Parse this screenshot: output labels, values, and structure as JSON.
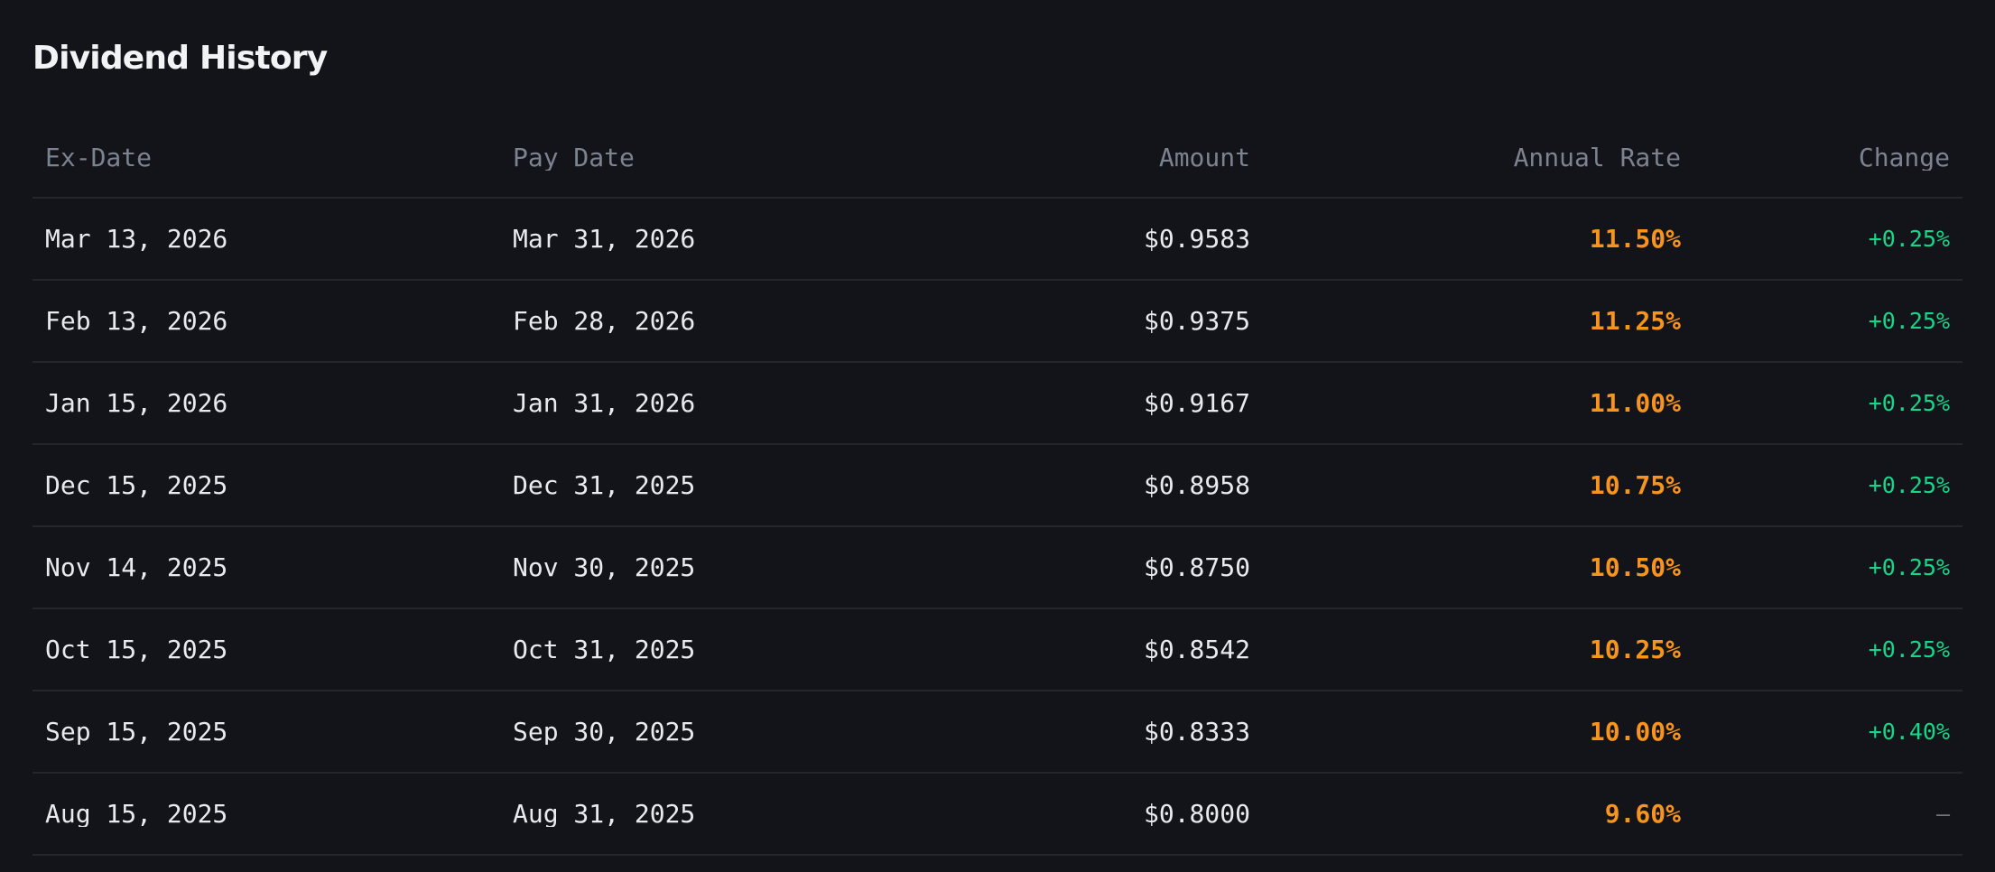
{
  "page": {
    "title": "Dividend History"
  },
  "colors": {
    "background": "#131419",
    "divider": "#25262c",
    "title_text": "#f2f3f5",
    "header_text": "#7c8290",
    "body_text": "#e9eaee",
    "annual_rate_orange": "#f7941d",
    "change_green": "#17d589",
    "no_change_gray": "#6f7480"
  },
  "table": {
    "columns": [
      {
        "key": "ex_date",
        "label": "Ex-Date",
        "align": "left"
      },
      {
        "key": "pay_date",
        "label": "Pay Date",
        "align": "left"
      },
      {
        "key": "amount",
        "label": "Amount",
        "align": "right"
      },
      {
        "key": "annual_rate",
        "label": "Annual Rate",
        "align": "right"
      },
      {
        "key": "change",
        "label": "Change",
        "align": "right"
      }
    ],
    "rows": [
      {
        "ex_date": "Mar 13, 2026",
        "pay_date": "Mar 31, 2026",
        "amount": "$0.9583",
        "annual_rate": "11.50%",
        "change": "+0.25%",
        "change_type": "positive"
      },
      {
        "ex_date": "Feb 13, 2026",
        "pay_date": "Feb 28, 2026",
        "amount": "$0.9375",
        "annual_rate": "11.25%",
        "change": "+0.25%",
        "change_type": "positive"
      },
      {
        "ex_date": "Jan 15, 2026",
        "pay_date": "Jan 31, 2026",
        "amount": "$0.9167",
        "annual_rate": "11.00%",
        "change": "+0.25%",
        "change_type": "positive"
      },
      {
        "ex_date": "Dec 15, 2025",
        "pay_date": "Dec 31, 2025",
        "amount": "$0.8958",
        "annual_rate": "10.75%",
        "change": "+0.25%",
        "change_type": "positive"
      },
      {
        "ex_date": "Nov 14, 2025",
        "pay_date": "Nov 30, 2025",
        "amount": "$0.8750",
        "annual_rate": "10.50%",
        "change": "+0.25%",
        "change_type": "positive"
      },
      {
        "ex_date": "Oct 15, 2025",
        "pay_date": "Oct 31, 2025",
        "amount": "$0.8542",
        "annual_rate": "10.25%",
        "change": "+0.25%",
        "change_type": "positive"
      },
      {
        "ex_date": "Sep 15, 2025",
        "pay_date": "Sep 30, 2025",
        "amount": "$0.8333",
        "annual_rate": "10.00%",
        "change": "+0.40%",
        "change_type": "positive"
      },
      {
        "ex_date": "Aug 15, 2025",
        "pay_date": "Aug 31, 2025",
        "amount": "$0.8000",
        "annual_rate": "9.60%",
        "change": "—",
        "change_type": "none"
      }
    ]
  }
}
